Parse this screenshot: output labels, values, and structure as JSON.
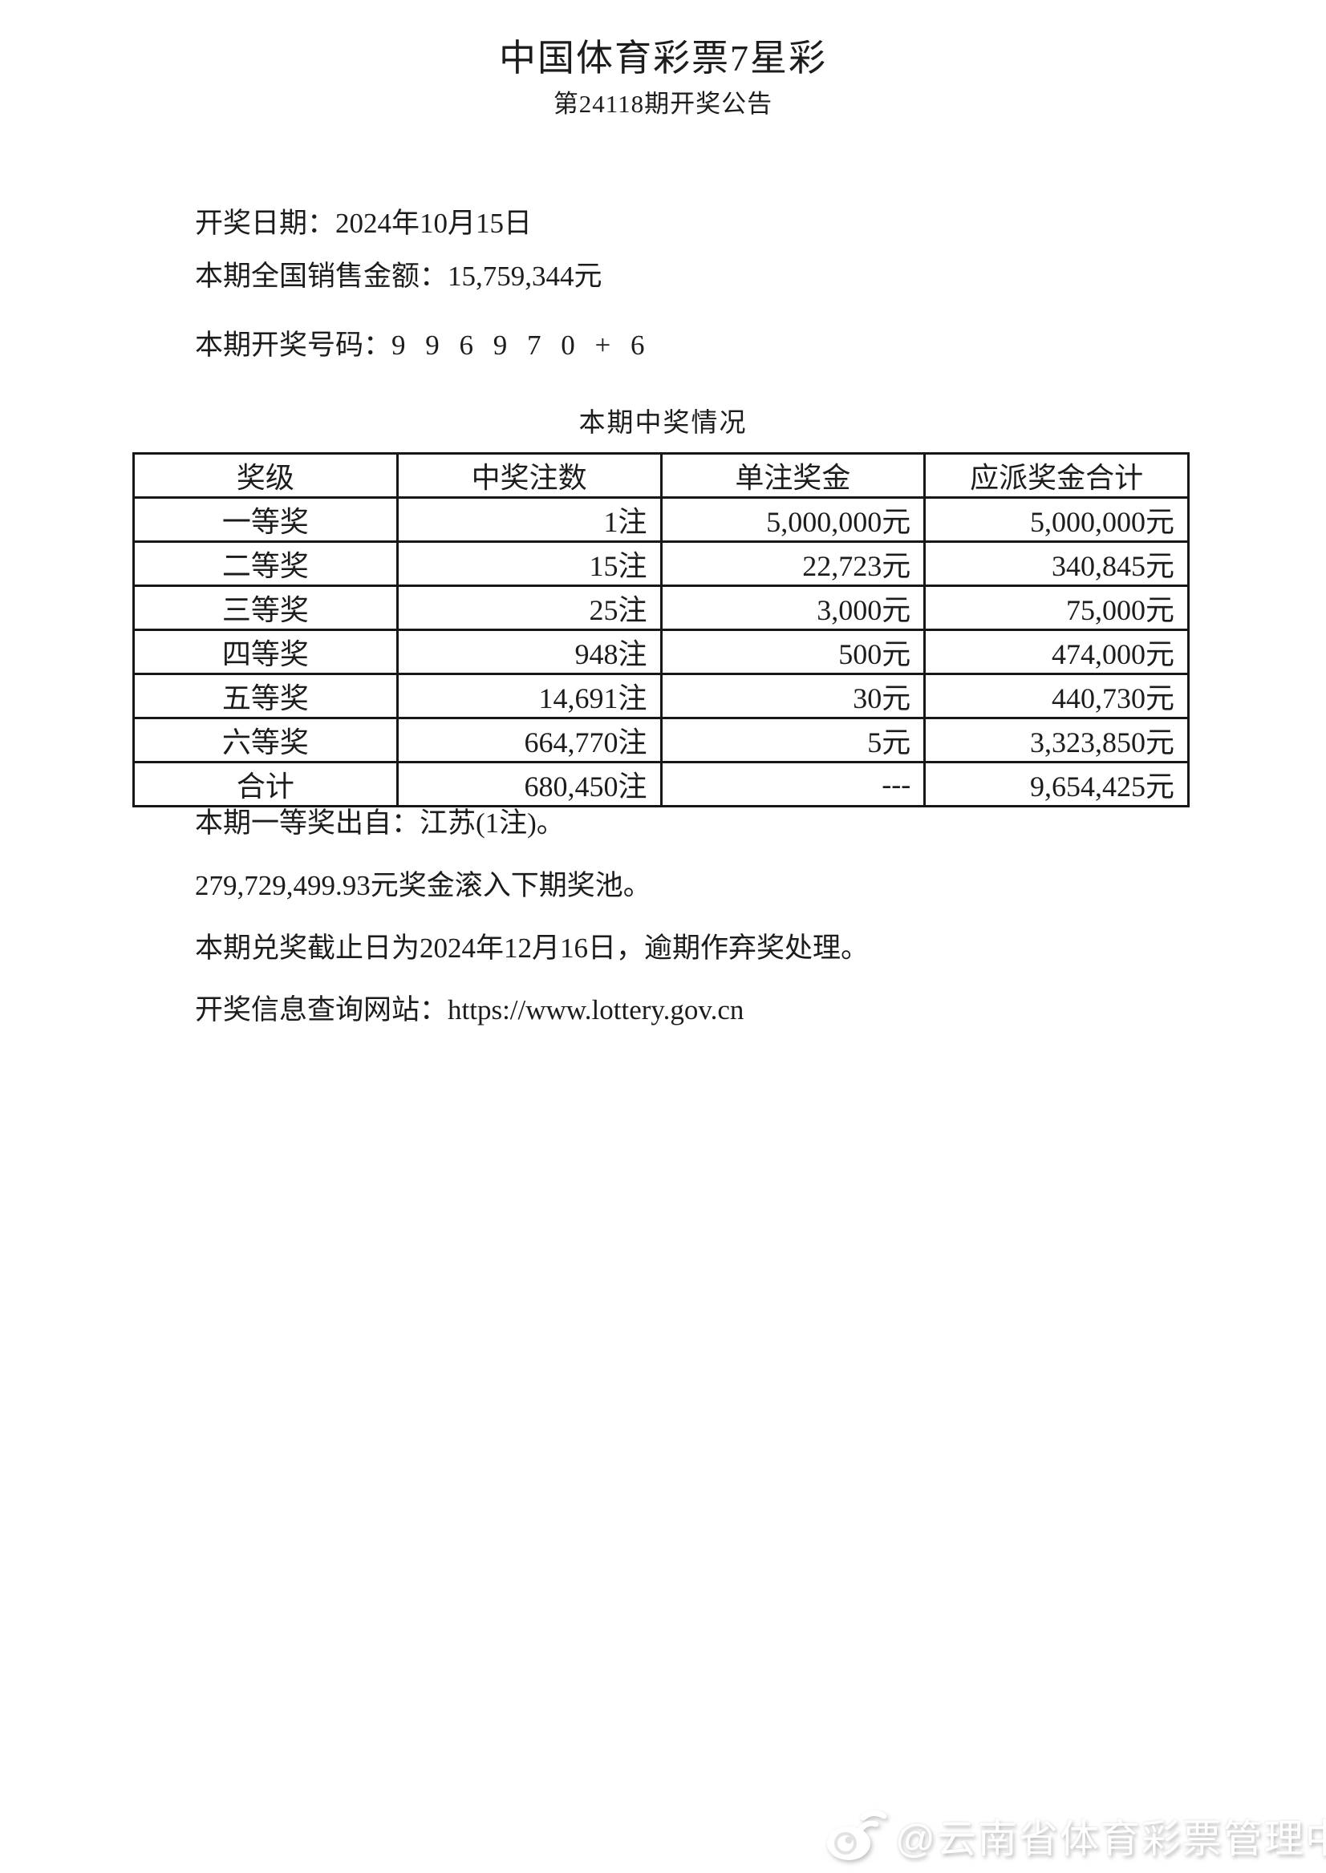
{
  "doc": {
    "title": "中国体育彩票7星彩",
    "subtitle": "第24118期开奖公告",
    "info": {
      "draw_date": "开奖日期：2024年10月15日",
      "sales": "本期全国销售金额：15,759,344元",
      "numbers_label": "本期开奖号码：",
      "numbers": "9 9 6 9 7 0 + 6"
    },
    "table": {
      "title": "本期中奖情况",
      "headers": [
        "奖级",
        "中奖注数",
        "单注奖金",
        "应派奖金合计"
      ],
      "rows": [
        [
          "一等奖",
          "1注",
          "5,000,000元",
          "5,000,000元"
        ],
        [
          "二等奖",
          "15注",
          "22,723元",
          "340,845元"
        ],
        [
          "三等奖",
          "25注",
          "3,000元",
          "75,000元"
        ],
        [
          "四等奖",
          "948注",
          "500元",
          "474,000元"
        ],
        [
          "五等奖",
          "14,691注",
          "30元",
          "440,730元"
        ],
        [
          "六等奖",
          "664,770注",
          "5元",
          "3,323,850元"
        ],
        [
          "合计",
          "680,450注",
          "---",
          "9,654,425元"
        ]
      ]
    },
    "notes": [
      "本期一等奖出自：江苏(1注)。",
      "279,729,499.93元奖金滚入下期奖池。",
      "本期兑奖截止日为2024年12月16日，逾期作弃奖处理。",
      "开奖信息查询网站：https://www.lottery.gov.cn"
    ],
    "watermark": {
      "icon": "weibo-icon",
      "text": "@云南省体育彩票管理中心"
    },
    "colors": {
      "text": "#1c1c1c",
      "table_border": "#171717",
      "background": "#ffffff",
      "watermark": "#ffffff"
    }
  }
}
